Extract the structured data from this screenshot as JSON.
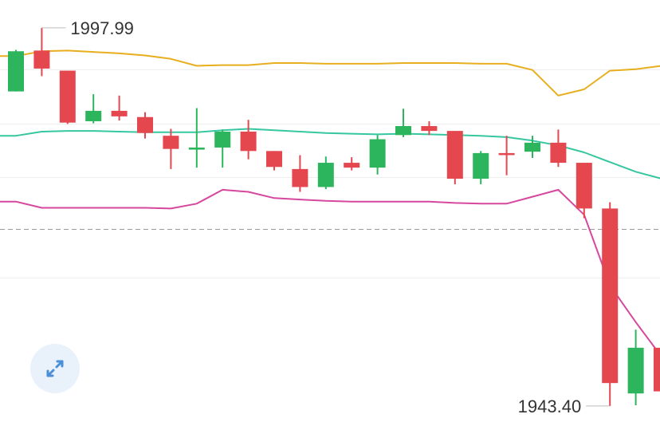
{
  "chart_data": {
    "type": "candlestick",
    "title": "",
    "xlabel": "",
    "ylabel": "",
    "y_range": [
      1940.5,
      2002.0
    ],
    "grid": true,
    "gridline_values": [
      1991.96,
      1984.2,
      1976.41,
      1961.96
    ],
    "reference_line": {
      "value": 1968.9,
      "style": "dashed"
    },
    "annotations": {
      "high_label": "1997.99",
      "high_value": 1997.99,
      "low_label": "1943.40",
      "low_value": 1943.4
    },
    "colors": {
      "up": "#2db55d",
      "down": "#e5474f",
      "bollinger_upper": "#e7ae1e",
      "bollinger_middle": "#36c7a0",
      "bollinger_lower": "#d6479e",
      "grid": "#eeeeee",
      "reference_line": "#9a9a9a"
    },
    "candles": [
      {
        "o": 1988.8,
        "h": 1994.8,
        "l": 1988.8,
        "c": 1994.6
      },
      {
        "o": 1994.7,
        "h": 1997.99,
        "l": 1991.0,
        "c": 1992.1
      },
      {
        "o": 1991.8,
        "h": 1991.8,
        "l": 1984.1,
        "c": 1984.3
      },
      {
        "o": 1984.5,
        "h": 1988.4,
        "l": 1984.2,
        "c": 1986.0
      },
      {
        "o": 1986.0,
        "h": 1988.2,
        "l": 1984.6,
        "c": 1985.2
      },
      {
        "o": 1985.1,
        "h": 1985.8,
        "l": 1982.0,
        "c": 1982.8
      },
      {
        "o": 1982.4,
        "h": 1983.4,
        "l": 1977.6,
        "c": 1980.5
      },
      {
        "o": 1980.4,
        "h": 1986.4,
        "l": 1977.8,
        "c": 1980.7
      },
      {
        "o": 1980.7,
        "h": 1983.3,
        "l": 1977.8,
        "c": 1983.0
      },
      {
        "o": 1983.0,
        "h": 1984.7,
        "l": 1979.0,
        "c": 1980.2
      },
      {
        "o": 1980.2,
        "h": 1980.2,
        "l": 1977.4,
        "c": 1977.9
      },
      {
        "o": 1977.6,
        "h": 1979.6,
        "l": 1974.3,
        "c": 1975.0
      },
      {
        "o": 1975.0,
        "h": 1979.4,
        "l": 1974.7,
        "c": 1978.5
      },
      {
        "o": 1978.5,
        "h": 1979.3,
        "l": 1977.4,
        "c": 1977.8
      },
      {
        "o": 1977.8,
        "h": 1982.5,
        "l": 1976.8,
        "c": 1981.9
      },
      {
        "o": 1982.5,
        "h": 1986.3,
        "l": 1982.2,
        "c": 1983.8
      },
      {
        "o": 1983.8,
        "h": 1984.5,
        "l": 1982.5,
        "c": 1983.1
      },
      {
        "o": 1983.1,
        "h": 1983.1,
        "l": 1975.4,
        "c": 1976.2
      },
      {
        "o": 1976.2,
        "h": 1980.2,
        "l": 1975.4,
        "c": 1979.9
      },
      {
        "o": 1979.9,
        "h": 1982.4,
        "l": 1976.7,
        "c": 1979.8
      },
      {
        "o": 1980.1,
        "h": 1982.4,
        "l": 1979.2,
        "c": 1981.4
      },
      {
        "o": 1981.4,
        "h": 1983.3,
        "l": 1977.9,
        "c": 1978.5
      },
      {
        "o": 1978.5,
        "h": 1978.5,
        "l": 1970.5,
        "c": 1971.9
      },
      {
        "o": 1971.9,
        "h": 1972.8,
        "l": 1943.4,
        "c": 1946.7
      },
      {
        "o": 1945.2,
        "h": 1954.4,
        "l": 1943.5,
        "c": 1951.8
      },
      {
        "o": 1951.8,
        "h": 1953.5,
        "l": 1944.8,
        "c": 1945.5
      }
    ],
    "bollinger": {
      "upper": [
        1993.9,
        1994.6,
        1994.7,
        1994.5,
        1994.3,
        1994.0,
        1993.5,
        1992.5,
        1992.6,
        1992.6,
        1992.9,
        1992.9,
        1992.8,
        1992.8,
        1992.8,
        1992.9,
        1992.9,
        1992.9,
        1992.8,
        1992.8,
        1991.9,
        1988.2,
        1989.1,
        1991.8,
        1992.0,
        1992.5
      ],
      "middle": [
        1982.4,
        1983.0,
        1983.1,
        1983.1,
        1983.0,
        1982.9,
        1982.9,
        1982.9,
        1983.2,
        1983.4,
        1983.2,
        1983.0,
        1982.8,
        1982.7,
        1982.6,
        1982.7,
        1982.6,
        1982.5,
        1982.4,
        1982.2,
        1981.7,
        1981.0,
        1980.0,
        1978.6,
        1977.2,
        1976.2
      ],
      "lower": [
        1972.9,
        1972.0,
        1972.0,
        1972.0,
        1972.0,
        1972.0,
        1971.9,
        1972.6,
        1974.6,
        1974.3,
        1973.4,
        1973.2,
        1973.0,
        1972.9,
        1972.9,
        1972.9,
        1972.9,
        1972.7,
        1972.6,
        1972.6,
        1973.6,
        1974.6,
        1971.0,
        1960.8,
        1955.5,
        1950.5
      ]
    }
  },
  "controls": {
    "expand_icon": "expand-arrows-icon"
  }
}
